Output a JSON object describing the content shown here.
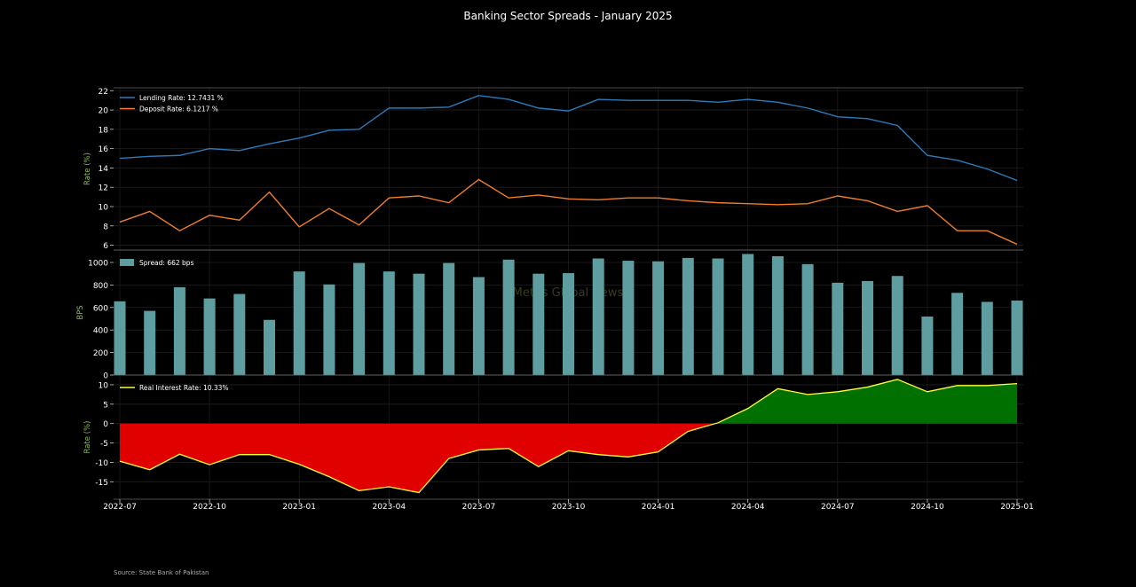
{
  "title": "Banking Sector Spreads - January 2025",
  "source": "Source: State Bank of Pakistan",
  "watermark": "Mettis Global News",
  "colors": {
    "background": "#000000",
    "lending": "#2b7bba",
    "deposit": "#ee7d2c",
    "spread_bar": "#5f9ea0",
    "real_line": "#ffff33",
    "positive_fill": "#007000",
    "negative_fill": "#e00000",
    "axis_label": "#8fbc5a"
  },
  "x_ticks": [
    "2022-07",
    "2022-10",
    "2023-01",
    "2023-04",
    "2023-07",
    "2023-10",
    "2024-01",
    "2024-04",
    "2024-07",
    "2024-10",
    "2025-01"
  ],
  "chart_data": [
    {
      "type": "line",
      "ylabel": "Rate (%)",
      "ylim": [
        5.5,
        22.3
      ],
      "yticks": [
        6,
        8,
        10,
        12,
        14,
        16,
        18,
        20,
        22
      ],
      "grid": true,
      "legend_position": "top-left",
      "x": [
        "2022-07",
        "2022-08",
        "2022-09",
        "2022-10",
        "2022-11",
        "2022-12",
        "2023-01",
        "2023-02",
        "2023-03",
        "2023-04",
        "2023-05",
        "2023-06",
        "2023-07",
        "2023-08",
        "2023-09",
        "2023-10",
        "2023-11",
        "2023-12",
        "2024-01",
        "2024-02",
        "2024-03",
        "2024-04",
        "2024-05",
        "2024-06",
        "2024-07",
        "2024-08",
        "2024-09",
        "2024-10",
        "2024-11",
        "2024-12",
        "2025-01"
      ],
      "series": [
        {
          "name": "Lending Rate: 12.7431 %",
          "values": [
            15.0,
            15.2,
            15.3,
            16.0,
            15.8,
            16.5,
            17.1,
            17.9,
            18.0,
            20.2,
            20.2,
            20.3,
            21.5,
            21.1,
            20.2,
            19.9,
            21.1,
            21.0,
            21.0,
            21.0,
            20.8,
            21.1,
            20.8,
            20.2,
            19.3,
            19.1,
            18.4,
            15.3,
            14.8,
            13.9,
            12.7
          ]
        },
        {
          "name": "Deposit Rate: 6.1217 %",
          "values": [
            8.4,
            9.5,
            7.5,
            9.1,
            8.6,
            11.5,
            7.9,
            9.8,
            8.1,
            10.9,
            11.1,
            10.4,
            12.8,
            10.9,
            11.2,
            10.8,
            10.7,
            10.9,
            10.9,
            10.6,
            10.4,
            10.3,
            10.2,
            10.3,
            11.1,
            10.6,
            9.5,
            10.1,
            7.5,
            7.5,
            6.1
          ]
        }
      ]
    },
    {
      "type": "bar",
      "ylabel": "BPS",
      "ylim": [
        0,
        1110
      ],
      "yticks": [
        0,
        200,
        400,
        600,
        800,
        1000
      ],
      "grid": true,
      "legend_position": "top-left",
      "series": [
        {
          "name": "Spread: 662 bps",
          "values": [
            655,
            570,
            780,
            680,
            720,
            490,
            920,
            805,
            995,
            920,
            900,
            995,
            870,
            1025,
            900,
            905,
            1035,
            1015,
            1010,
            1040,
            1035,
            1075,
            1055,
            985,
            820,
            835,
            880,
            520,
            730,
            650,
            662
          ]
        }
      ]
    },
    {
      "type": "area",
      "ylabel": "Rate (%)",
      "ylim": [
        -19.5,
        12.5
      ],
      "yticks": [
        -15,
        -10,
        -5,
        0,
        5,
        10
      ],
      "grid": true,
      "legend_position": "top-left",
      "series": [
        {
          "name": "Real Interest Rate: 10.33%",
          "values": [
            -9.7,
            -11.9,
            -7.9,
            -10.6,
            -8.0,
            -8.0,
            -10.5,
            -13.7,
            -17.3,
            -16.3,
            -17.8,
            -9.0,
            -6.8,
            -6.4,
            -11.1,
            -7.0,
            -8.0,
            -8.6,
            -7.3,
            -2.0,
            0.2,
            3.9,
            9.0,
            7.5,
            8.2,
            9.4,
            11.4,
            8.2,
            9.8,
            9.8,
            10.3
          ]
        }
      ]
    }
  ]
}
